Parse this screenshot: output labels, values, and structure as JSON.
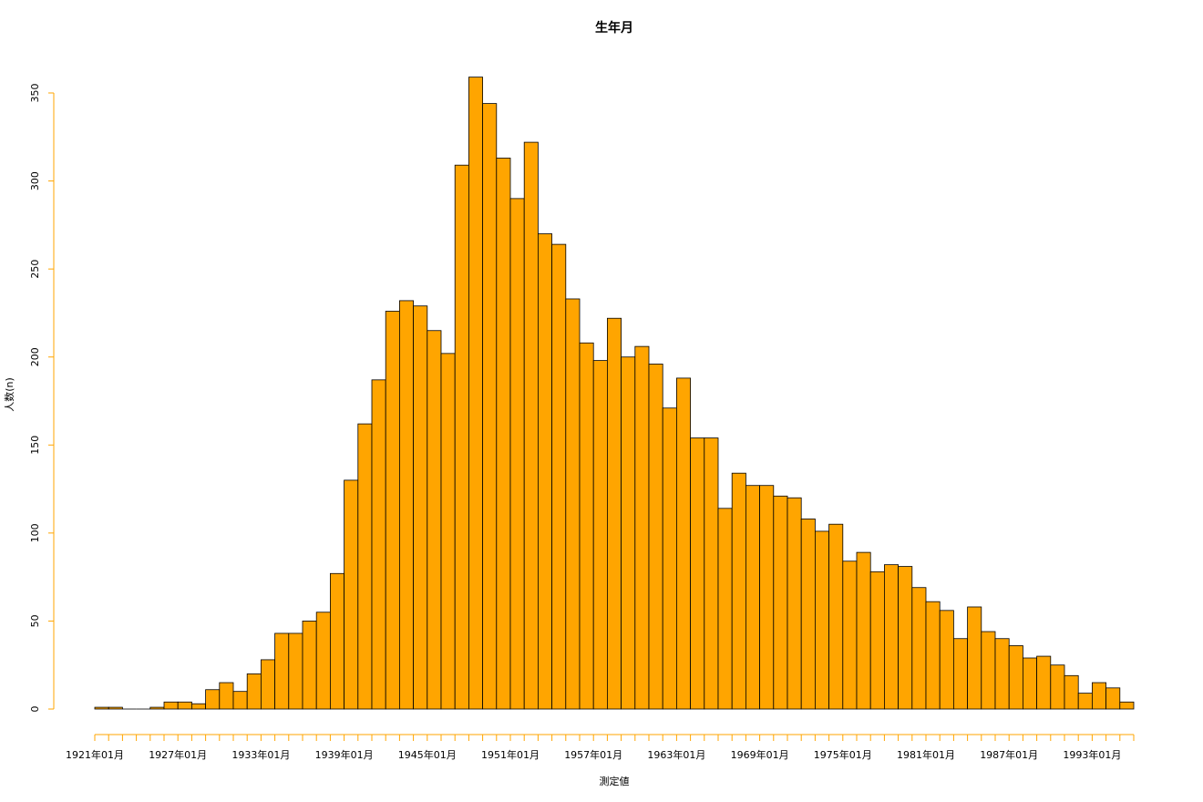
{
  "chart_data": {
    "type": "bar",
    "title": "生年月",
    "xlabel": "測定値",
    "ylabel": "人数(n)",
    "ylim": [
      0,
      360
    ],
    "yticks": [
      0,
      50,
      100,
      150,
      200,
      250,
      300,
      350
    ],
    "xtick_labels": [
      "1921年01月",
      "1927年01月",
      "1933年01月",
      "1939年01月",
      "1945年01月",
      "1951年01月",
      "1957年01月",
      "1963年01月",
      "1969年01月",
      "1975年01月",
      "1981年01月",
      "1987年01月",
      "1993年01月"
    ],
    "values": [
      1,
      1,
      0,
      0,
      1,
      4,
      4,
      3,
      11,
      15,
      10,
      20,
      28,
      43,
      43,
      50,
      55,
      77,
      130,
      162,
      187,
      226,
      232,
      229,
      215,
      202,
      309,
      359,
      344,
      313,
      290,
      322,
      270,
      264,
      233,
      208,
      198,
      222,
      200,
      206,
      196,
      171,
      188,
      154,
      154,
      114,
      134,
      127,
      127,
      121,
      120,
      108,
      101,
      105,
      84,
      89,
      78,
      82,
      81,
      69,
      61,
      56,
      40,
      58,
      44,
      40,
      36,
      29,
      30,
      25,
      19,
      9,
      15,
      12,
      4
    ],
    "bar_color": "#FFA500",
    "axis_color": "#FFA500",
    "grid": false
  }
}
